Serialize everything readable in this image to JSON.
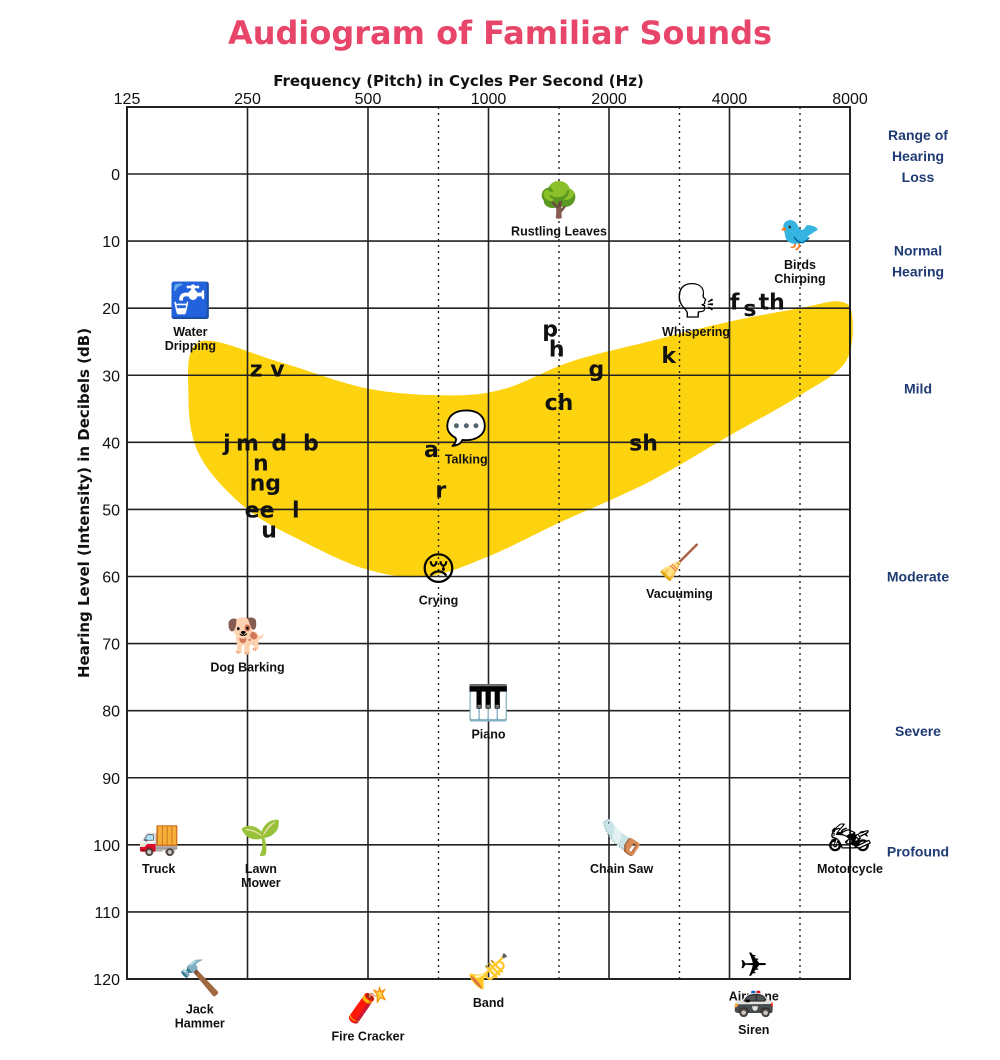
{
  "title": "Audiogram of Familiar Sounds",
  "colors": {
    "title": "#e8456b",
    "banana": "#fdd20e",
    "grid": "#222222",
    "category_text": "#1f3b73"
  },
  "chart_data": {
    "type": "scatter",
    "title": "Audiogram of Familiar Sounds",
    "xlabel": "Frequency (Pitch) in Cycles Per Second (Hz)",
    "ylabel": "Hearing Level (Intensity) in Decibels (dB)",
    "x_scale": "log2",
    "x_ticks": [
      "125",
      "250",
      "500",
      "1000",
      "2000",
      "4000",
      "8000"
    ],
    "x_tick_values": [
      125,
      250,
      500,
      1000,
      2000,
      4000,
      8000
    ],
    "x_dotted_ticks": [
      750,
      1500,
      3000,
      6000
    ],
    "y_ticks": [
      "0",
      "10",
      "20",
      "30",
      "40",
      "50",
      "60",
      "70",
      "80",
      "90",
      "100",
      "110",
      "120"
    ],
    "y_tick_values": [
      0,
      10,
      20,
      30,
      40,
      50,
      60,
      70,
      80,
      90,
      100,
      110,
      120
    ],
    "xlim": [
      125,
      8000
    ],
    "ylim": [
      -10,
      120
    ],
    "y_inverted": true,
    "grid": true,
    "hearing_loss_header": [
      "Range of",
      "Hearing",
      "Loss"
    ],
    "hearing_loss_ranges": [
      {
        "lines": [
          "Normal",
          "Hearing"
        ],
        "db": 13
      },
      {
        "lines": [
          "Mild"
        ],
        "db": 32
      },
      {
        "lines": [
          "Moderate"
        ],
        "db": 60
      },
      {
        "lines": [
          "Severe"
        ],
        "db": 83
      },
      {
        "lines": [
          "Profound"
        ],
        "db": 101
      }
    ],
    "speech_banana": {
      "label": "speech banana",
      "outline": [
        [
          190,
          25
        ],
        [
          300,
          28
        ],
        [
          500,
          32
        ],
        [
          800,
          33
        ],
        [
          1100,
          32
        ],
        [
          1600,
          28
        ],
        [
          2500,
          25
        ],
        [
          4000,
          22
        ],
        [
          6000,
          20
        ],
        [
          7500,
          19
        ],
        [
          8100,
          21
        ],
        [
          7800,
          28
        ],
        [
          6000,
          33
        ],
        [
          4000,
          39
        ],
        [
          2500,
          46
        ],
        [
          1500,
          52
        ],
        [
          1000,
          57
        ],
        [
          700,
          60
        ],
        [
          500,
          59
        ],
        [
          350,
          55
        ],
        [
          250,
          50
        ],
        [
          190,
          42
        ],
        [
          178,
          33
        ]
      ]
    },
    "phonemes": [
      {
        "label": "z v",
        "freq": 280,
        "db": 29
      },
      {
        "label": "j",
        "freq": 222,
        "db": 40
      },
      {
        "label": "m",
        "freq": 250,
        "db": 40
      },
      {
        "label": "d",
        "freq": 300,
        "db": 40
      },
      {
        "label": "b",
        "freq": 360,
        "db": 40
      },
      {
        "label": "n",
        "freq": 270,
        "db": 43
      },
      {
        "label": "ng",
        "freq": 277,
        "db": 46
      },
      {
        "label": "ee",
        "freq": 268,
        "db": 50
      },
      {
        "label": "l",
        "freq": 330,
        "db": 50
      },
      {
        "label": "u",
        "freq": 283,
        "db": 53
      },
      {
        "label": "a",
        "freq": 720,
        "db": 41
      },
      {
        "label": "r",
        "freq": 760,
        "db": 47
      },
      {
        "label": "p",
        "freq": 1425,
        "db": 23
      },
      {
        "label": "h",
        "freq": 1480,
        "db": 26
      },
      {
        "label": "g",
        "freq": 1860,
        "db": 29
      },
      {
        "label": "ch",
        "freq": 1500,
        "db": 34
      },
      {
        "label": "k",
        "freq": 2820,
        "db": 27
      },
      {
        "label": "sh",
        "freq": 2440,
        "db": 40
      },
      {
        "label": "f",
        "freq": 4120,
        "db": 19
      },
      {
        "label": "s",
        "freq": 4500,
        "db": 20
      },
      {
        "label": "th",
        "freq": 5100,
        "db": 19
      }
    ],
    "sounds": [
      {
        "lines": [
          "Rustling Leaves"
        ],
        "freq": 1500,
        "db": 5,
        "icon": "tree-icon",
        "symbol": "🌳"
      },
      {
        "lines": [
          "Birds",
          "Chirping"
        ],
        "freq": 6000,
        "db": 10,
        "icon": "bird-icon",
        "symbol": "🐦"
      },
      {
        "lines": [
          "Water",
          "Dripping"
        ],
        "freq": 180,
        "db": 20,
        "icon": "faucet-icon",
        "symbol": "🚰"
      },
      {
        "lines": [
          "Whispering"
        ],
        "freq": 3300,
        "db": 20,
        "icon": "whispering-icon",
        "symbol": "🗣"
      },
      {
        "lines": [
          "Talking"
        ],
        "freq": 880,
        "db": 39,
        "icon": "talking-icon",
        "symbol": "💬"
      },
      {
        "lines": [
          "Crying"
        ],
        "freq": 750,
        "db": 60,
        "icon": "crying-icon",
        "symbol": "😢"
      },
      {
        "lines": [
          "Vacuuming"
        ],
        "freq": 3000,
        "db": 59,
        "icon": "vacuum-icon",
        "symbol": "🧹"
      },
      {
        "lines": [
          "Dog Barking"
        ],
        "freq": 250,
        "db": 70,
        "icon": "dog-icon",
        "symbol": "🐕"
      },
      {
        "lines": [
          "Piano"
        ],
        "freq": 1000,
        "db": 80,
        "icon": "piano-icon",
        "symbol": "🎹"
      },
      {
        "lines": [
          "Truck"
        ],
        "freq": 150,
        "db": 100,
        "icon": "truck-icon",
        "symbol": "🚚"
      },
      {
        "lines": [
          "Lawn",
          "Mower"
        ],
        "freq": 270,
        "db": 100,
        "icon": "lawn-mower-icon",
        "symbol": "🌱"
      },
      {
        "lines": [
          "Chain Saw"
        ],
        "freq": 2150,
        "db": 100,
        "icon": "chain-saw-icon",
        "symbol": "🪚"
      },
      {
        "lines": [
          "Motorcycle"
        ],
        "freq": 8000,
        "db": 100,
        "icon": "motorcycle-icon",
        "symbol": "🏍"
      },
      {
        "lines": [
          "Jack",
          "Hammer"
        ],
        "freq": 190,
        "db": 121,
        "icon": "jack-hammer-icon",
        "symbol": "🔨"
      },
      {
        "lines": [
          "Fire Cracker"
        ],
        "freq": 500,
        "db": 125,
        "icon": "fire-cracker-icon",
        "symbol": "🧨"
      },
      {
        "lines": [
          "Band"
        ],
        "freq": 1000,
        "db": 120,
        "icon": "band-icon",
        "symbol": "🎺"
      },
      {
        "lines": [
          "Airplane"
        ],
        "freq": 4600,
        "db": 119,
        "icon": "airplane-icon",
        "symbol": "✈"
      },
      {
        "lines": [
          "Siren"
        ],
        "freq": 4600,
        "db": 124,
        "icon": "siren-icon",
        "symbol": "🚓"
      }
    ]
  }
}
